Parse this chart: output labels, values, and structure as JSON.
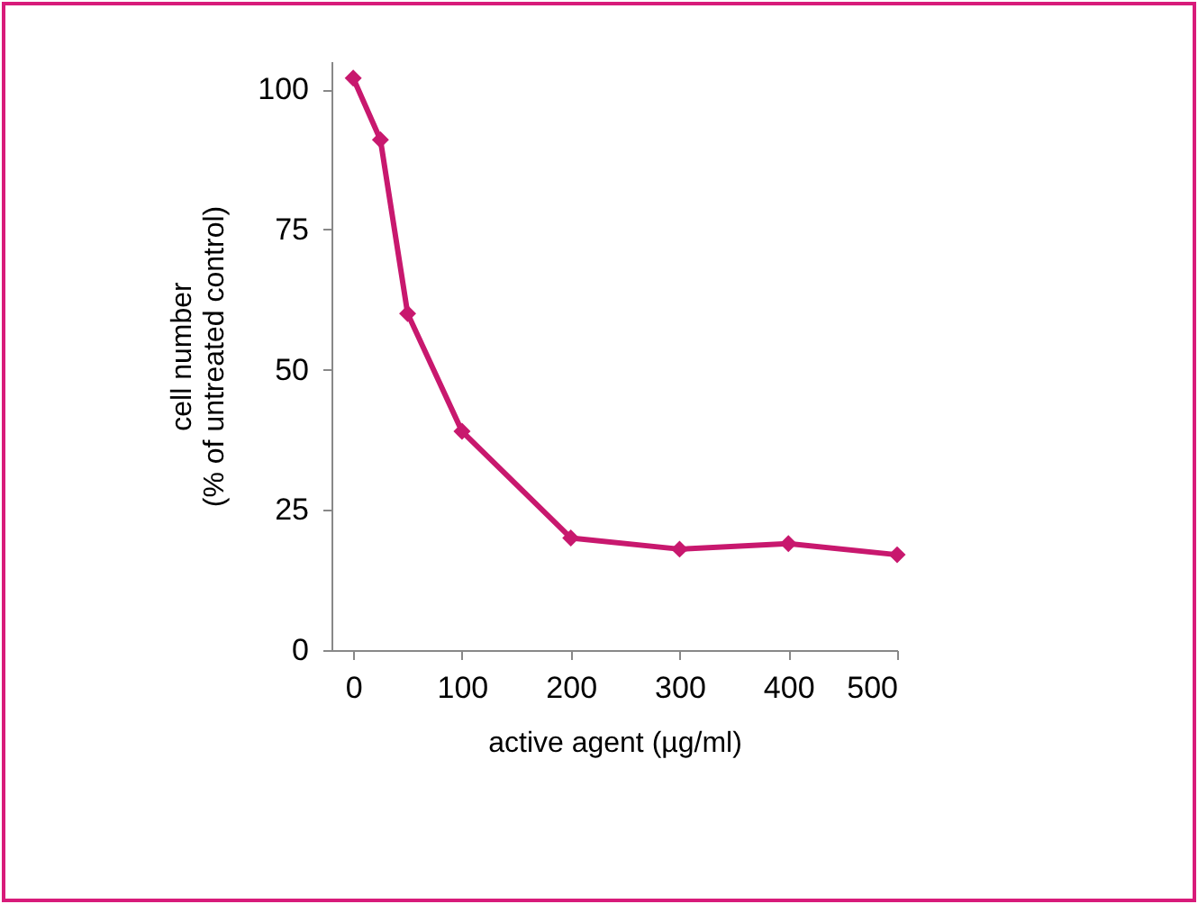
{
  "chart_data": {
    "type": "line",
    "xlabel": "active agent (µg/ml)",
    "ylabel": "cell number\n(% of untreated control)",
    "x": [
      0,
      25,
      50,
      100,
      200,
      300,
      400,
      500
    ],
    "series": [
      {
        "color": "#c8186e",
        "values": [
          102,
          91,
          60,
          39,
          20,
          18,
          19,
          17
        ]
      }
    ],
    "xlim": [
      -20,
      500
    ],
    "xticks": [
      0,
      100,
      200,
      300,
      400,
      500
    ],
    "ylim": [
      0,
      105
    ],
    "yticks": [
      0,
      25,
      50,
      75,
      100
    ],
    "grid": false,
    "marker": "diamond",
    "line_style": "solid"
  }
}
